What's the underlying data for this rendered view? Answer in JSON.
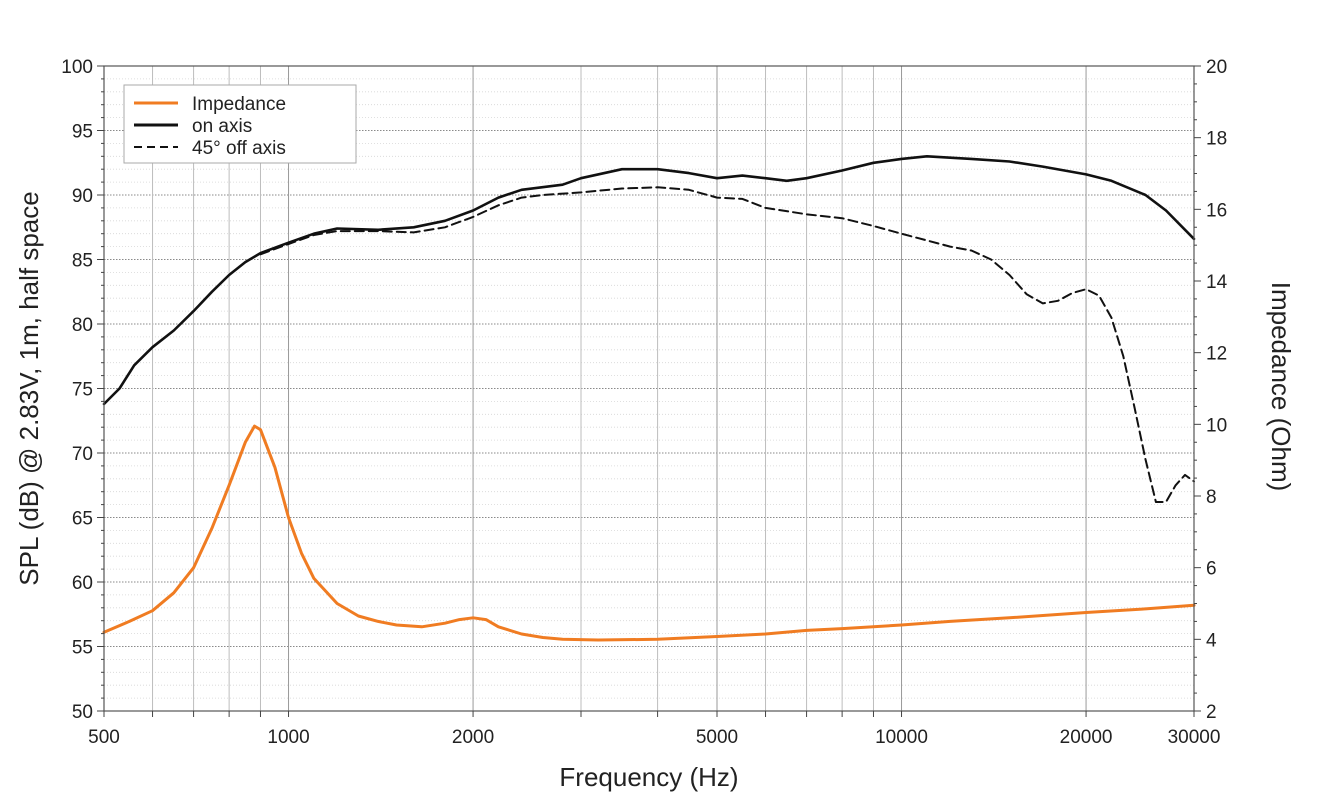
{
  "chart_data": {
    "type": "line",
    "xlabel": "Frequency (Hz)",
    "ylabel": "SPL (dB) @ 2.83V, 1m, half space",
    "y2label": "Impedance (Ohm)",
    "xscale": "log",
    "xlim": [
      500,
      30000
    ],
    "ylim": [
      50,
      100
    ],
    "y2lim": [
      2,
      20
    ],
    "grid": true,
    "legend_position": "top-left",
    "x_ticks": [
      500,
      1000,
      2000,
      5000,
      10000,
      20000,
      30000
    ],
    "x_tick_labels": [
      "500",
      "1000",
      "2000",
      "5000",
      "10000",
      "20000",
      "30000"
    ],
    "x_minor_gridlines": [
      600,
      700,
      800,
      900,
      3000,
      4000,
      6000,
      7000,
      8000,
      9000
    ],
    "y_ticks": [
      50,
      55,
      60,
      65,
      70,
      75,
      80,
      85,
      90,
      95,
      100
    ],
    "y_tick_labels": [
      "50",
      "55",
      "60",
      "65",
      "70",
      "75",
      "80",
      "85",
      "90",
      "95",
      "100"
    ],
    "y2_ticks": [
      2,
      4,
      6,
      8,
      10,
      12,
      14,
      16,
      18,
      20
    ],
    "y2_tick_labels": [
      "2",
      "4",
      "6",
      "8",
      "10",
      "12",
      "14",
      "16",
      "18",
      "20"
    ],
    "legend": [
      {
        "label": "Impedance",
        "color": "#f07c22",
        "dash": "solid"
      },
      {
        "label": "on axis",
        "color": "#111111",
        "dash": "solid"
      },
      {
        "label": "45° off axis",
        "color": "#111111",
        "dash": "dashed"
      }
    ],
    "series": [
      {
        "name": "Impedance",
        "axis": "right",
        "color": "#f07c22",
        "dash": "solid",
        "points": [
          [
            500,
            4.2
          ],
          [
            550,
            4.5
          ],
          [
            600,
            4.8
          ],
          [
            650,
            5.3
          ],
          [
            700,
            6
          ],
          [
            750,
            7.1
          ],
          [
            800,
            8.3
          ],
          [
            850,
            9.5
          ],
          [
            880,
            9.95
          ],
          [
            900,
            9.85
          ],
          [
            950,
            8.8
          ],
          [
            1000,
            7.4
          ],
          [
            1050,
            6.4
          ],
          [
            1100,
            5.7
          ],
          [
            1200,
            5
          ],
          [
            1300,
            4.65
          ],
          [
            1400,
            4.5
          ],
          [
            1500,
            4.4
          ],
          [
            1650,
            4.35
          ],
          [
            1800,
            4.45
          ],
          [
            1900,
            4.55
          ],
          [
            2000,
            4.6
          ],
          [
            2100,
            4.55
          ],
          [
            2200,
            4.35
          ],
          [
            2400,
            4.15
          ],
          [
            2600,
            4.05
          ],
          [
            2800,
            4.0
          ],
          [
            3200,
            3.98
          ],
          [
            4000,
            4.0
          ],
          [
            5000,
            4.08
          ],
          [
            6000,
            4.15
          ],
          [
            7000,
            4.25
          ],
          [
            8000,
            4.3
          ],
          [
            10000,
            4.4
          ],
          [
            12000,
            4.5
          ],
          [
            15000,
            4.6
          ],
          [
            20000,
            4.75
          ],
          [
            25000,
            4.85
          ],
          [
            30000,
            4.95
          ]
        ]
      },
      {
        "name": "on axis",
        "axis": "left",
        "color": "#111111",
        "dash": "solid",
        "points": [
          [
            500,
            73.8
          ],
          [
            530,
            75
          ],
          [
            560,
            76.8
          ],
          [
            600,
            78.2
          ],
          [
            650,
            79.5
          ],
          [
            700,
            81
          ],
          [
            750,
            82.5
          ],
          [
            800,
            83.8
          ],
          [
            850,
            84.8
          ],
          [
            900,
            85.5
          ],
          [
            1000,
            86.3
          ],
          [
            1100,
            87
          ],
          [
            1200,
            87.4
          ],
          [
            1400,
            87.3
          ],
          [
            1600,
            87.5
          ],
          [
            1800,
            88
          ],
          [
            2000,
            88.8
          ],
          [
            2200,
            89.8
          ],
          [
            2400,
            90.4
          ],
          [
            2800,
            90.8
          ],
          [
            3000,
            91.3
          ],
          [
            3500,
            92
          ],
          [
            4000,
            92
          ],
          [
            4500,
            91.7
          ],
          [
            5000,
            91.3
          ],
          [
            5500,
            91.5
          ],
          [
            6000,
            91.3
          ],
          [
            6500,
            91.1
          ],
          [
            7000,
            91.3
          ],
          [
            8000,
            91.9
          ],
          [
            9000,
            92.5
          ],
          [
            10000,
            92.8
          ],
          [
            11000,
            93
          ],
          [
            13000,
            92.8
          ],
          [
            15000,
            92.6
          ],
          [
            17000,
            92.2
          ],
          [
            20000,
            91.6
          ],
          [
            22000,
            91.1
          ],
          [
            25000,
            90
          ],
          [
            27000,
            88.8
          ],
          [
            30000,
            86.6
          ]
        ]
      },
      {
        "name": "45° off axis",
        "axis": "left",
        "color": "#111111",
        "dash": "dashed",
        "points": [
          [
            900,
            85.4
          ],
          [
            1000,
            86.2
          ],
          [
            1100,
            86.9
          ],
          [
            1200,
            87.2
          ],
          [
            1400,
            87.2
          ],
          [
            1600,
            87.1
          ],
          [
            1800,
            87.5
          ],
          [
            2000,
            88.3
          ],
          [
            2200,
            89.2
          ],
          [
            2400,
            89.8
          ],
          [
            2600,
            90
          ],
          [
            3000,
            90.2
          ],
          [
            3500,
            90.5
          ],
          [
            4000,
            90.6
          ],
          [
            4500,
            90.4
          ],
          [
            5000,
            89.8
          ],
          [
            5500,
            89.7
          ],
          [
            6000,
            89
          ],
          [
            7000,
            88.5
          ],
          [
            8000,
            88.2
          ],
          [
            9000,
            87.6
          ],
          [
            10000,
            87
          ],
          [
            12000,
            86
          ],
          [
            13000,
            85.7
          ],
          [
            14000,
            85
          ],
          [
            15000,
            83.8
          ],
          [
            16000,
            82.3
          ],
          [
            17000,
            81.6
          ],
          [
            18000,
            81.8
          ],
          [
            19000,
            82.4
          ],
          [
            20000,
            82.7
          ],
          [
            21000,
            82.2
          ],
          [
            22000,
            80.5
          ],
          [
            23000,
            77.5
          ],
          [
            24000,
            73.5
          ],
          [
            25000,
            69.5
          ],
          [
            26000,
            66.2
          ],
          [
            27000,
            66.2
          ],
          [
            28000,
            67.5
          ],
          [
            29000,
            68.3
          ],
          [
            30000,
            67.8
          ]
        ]
      }
    ]
  }
}
